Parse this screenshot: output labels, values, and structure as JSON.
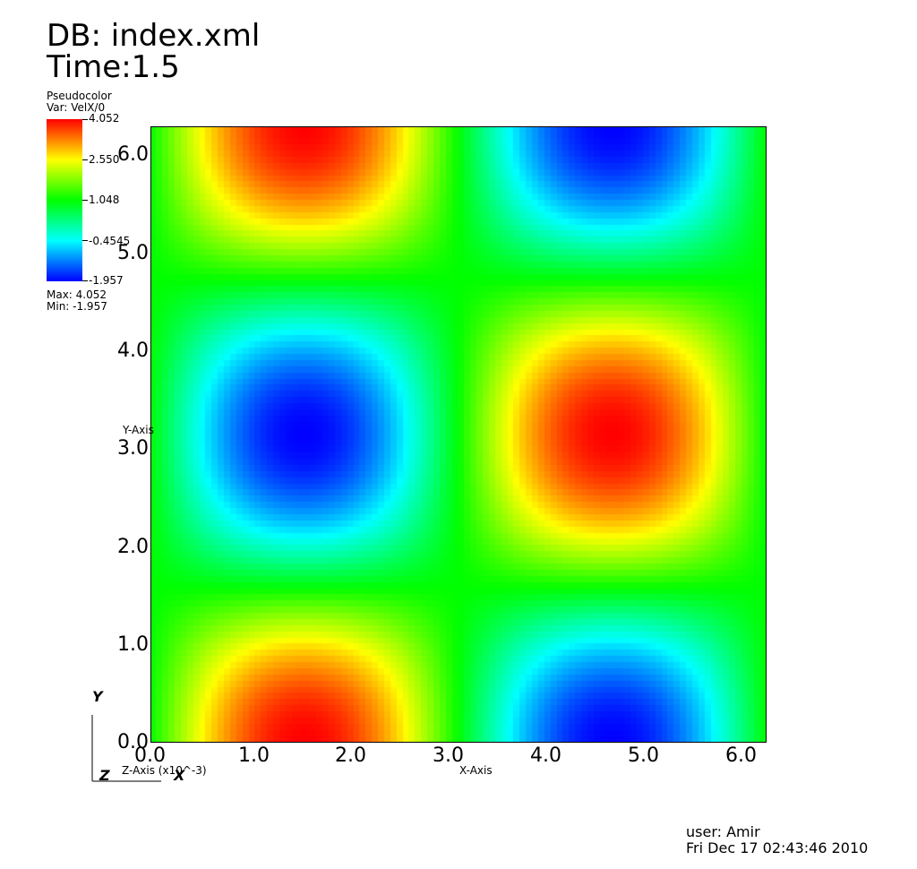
{
  "header": {
    "db_label": "DB: index.xml",
    "time_label": "Time:1.5"
  },
  "legend": {
    "plot_type": "Pseudocolor",
    "var_label": "Var: VelX/0",
    "ticks": [
      "4.052",
      "2.550",
      "1.048",
      "-0.4545",
      "-1.957"
    ],
    "max_label": "Max:  4.052",
    "min_label": "Min: -1.957",
    "colors": [
      "#ff0000",
      "#ffff00",
      "#00ff00",
      "#00ffff",
      "#0000ff"
    ]
  },
  "axes": {
    "x_label": "X-Axis",
    "y_label": "Y-Axis",
    "z_label": "Z-Axis (x10^-3)",
    "x_ticks": [
      "0.0",
      "1.0",
      "2.0",
      "3.0",
      "4.0",
      "5.0",
      "6.0"
    ],
    "y_ticks": [
      "0.0",
      "1.0",
      "2.0",
      "3.0",
      "4.0",
      "5.0",
      "6.0"
    ],
    "triad": {
      "y": "Y",
      "z": "Z",
      "x": "X"
    }
  },
  "footer": {
    "user": "user: Amir",
    "date": "Fri Dec 17 02:43:46 2010"
  },
  "chart_data": {
    "type": "heatmap",
    "title": "",
    "variable": "VelX/0",
    "xlabel": "X-Axis",
    "ylabel": "Y-Axis",
    "xlim": [
      0,
      6.283
    ],
    "ylim": [
      0,
      6.283
    ],
    "x_ticks": [
      0,
      1,
      2,
      3,
      4,
      5,
      6
    ],
    "y_ticks": [
      0,
      1,
      2,
      3,
      4,
      5,
      6
    ],
    "value_range": [
      -1.957,
      4.052
    ],
    "colormap": "hot_desaturated_rainbow",
    "field_model": {
      "expression": "1.0475 + 3.0045 * sin(x) * cos(y)",
      "extrema": [
        {
          "x": 1.571,
          "y": 0.0,
          "value": 4.052,
          "kind": "max"
        },
        {
          "x": 4.712,
          "y": 3.142,
          "value": 4.052,
          "kind": "max"
        },
        {
          "x": 1.571,
          "y": 6.283,
          "value": 4.052,
          "kind": "max"
        },
        {
          "x": 1.571,
          "y": 3.142,
          "value": -1.957,
          "kind": "min"
        },
        {
          "x": 4.712,
          "y": 0.0,
          "value": -1.957,
          "kind": "min"
        },
        {
          "x": 4.712,
          "y": 6.283,
          "value": -1.957,
          "kind": "min"
        }
      ]
    }
  }
}
